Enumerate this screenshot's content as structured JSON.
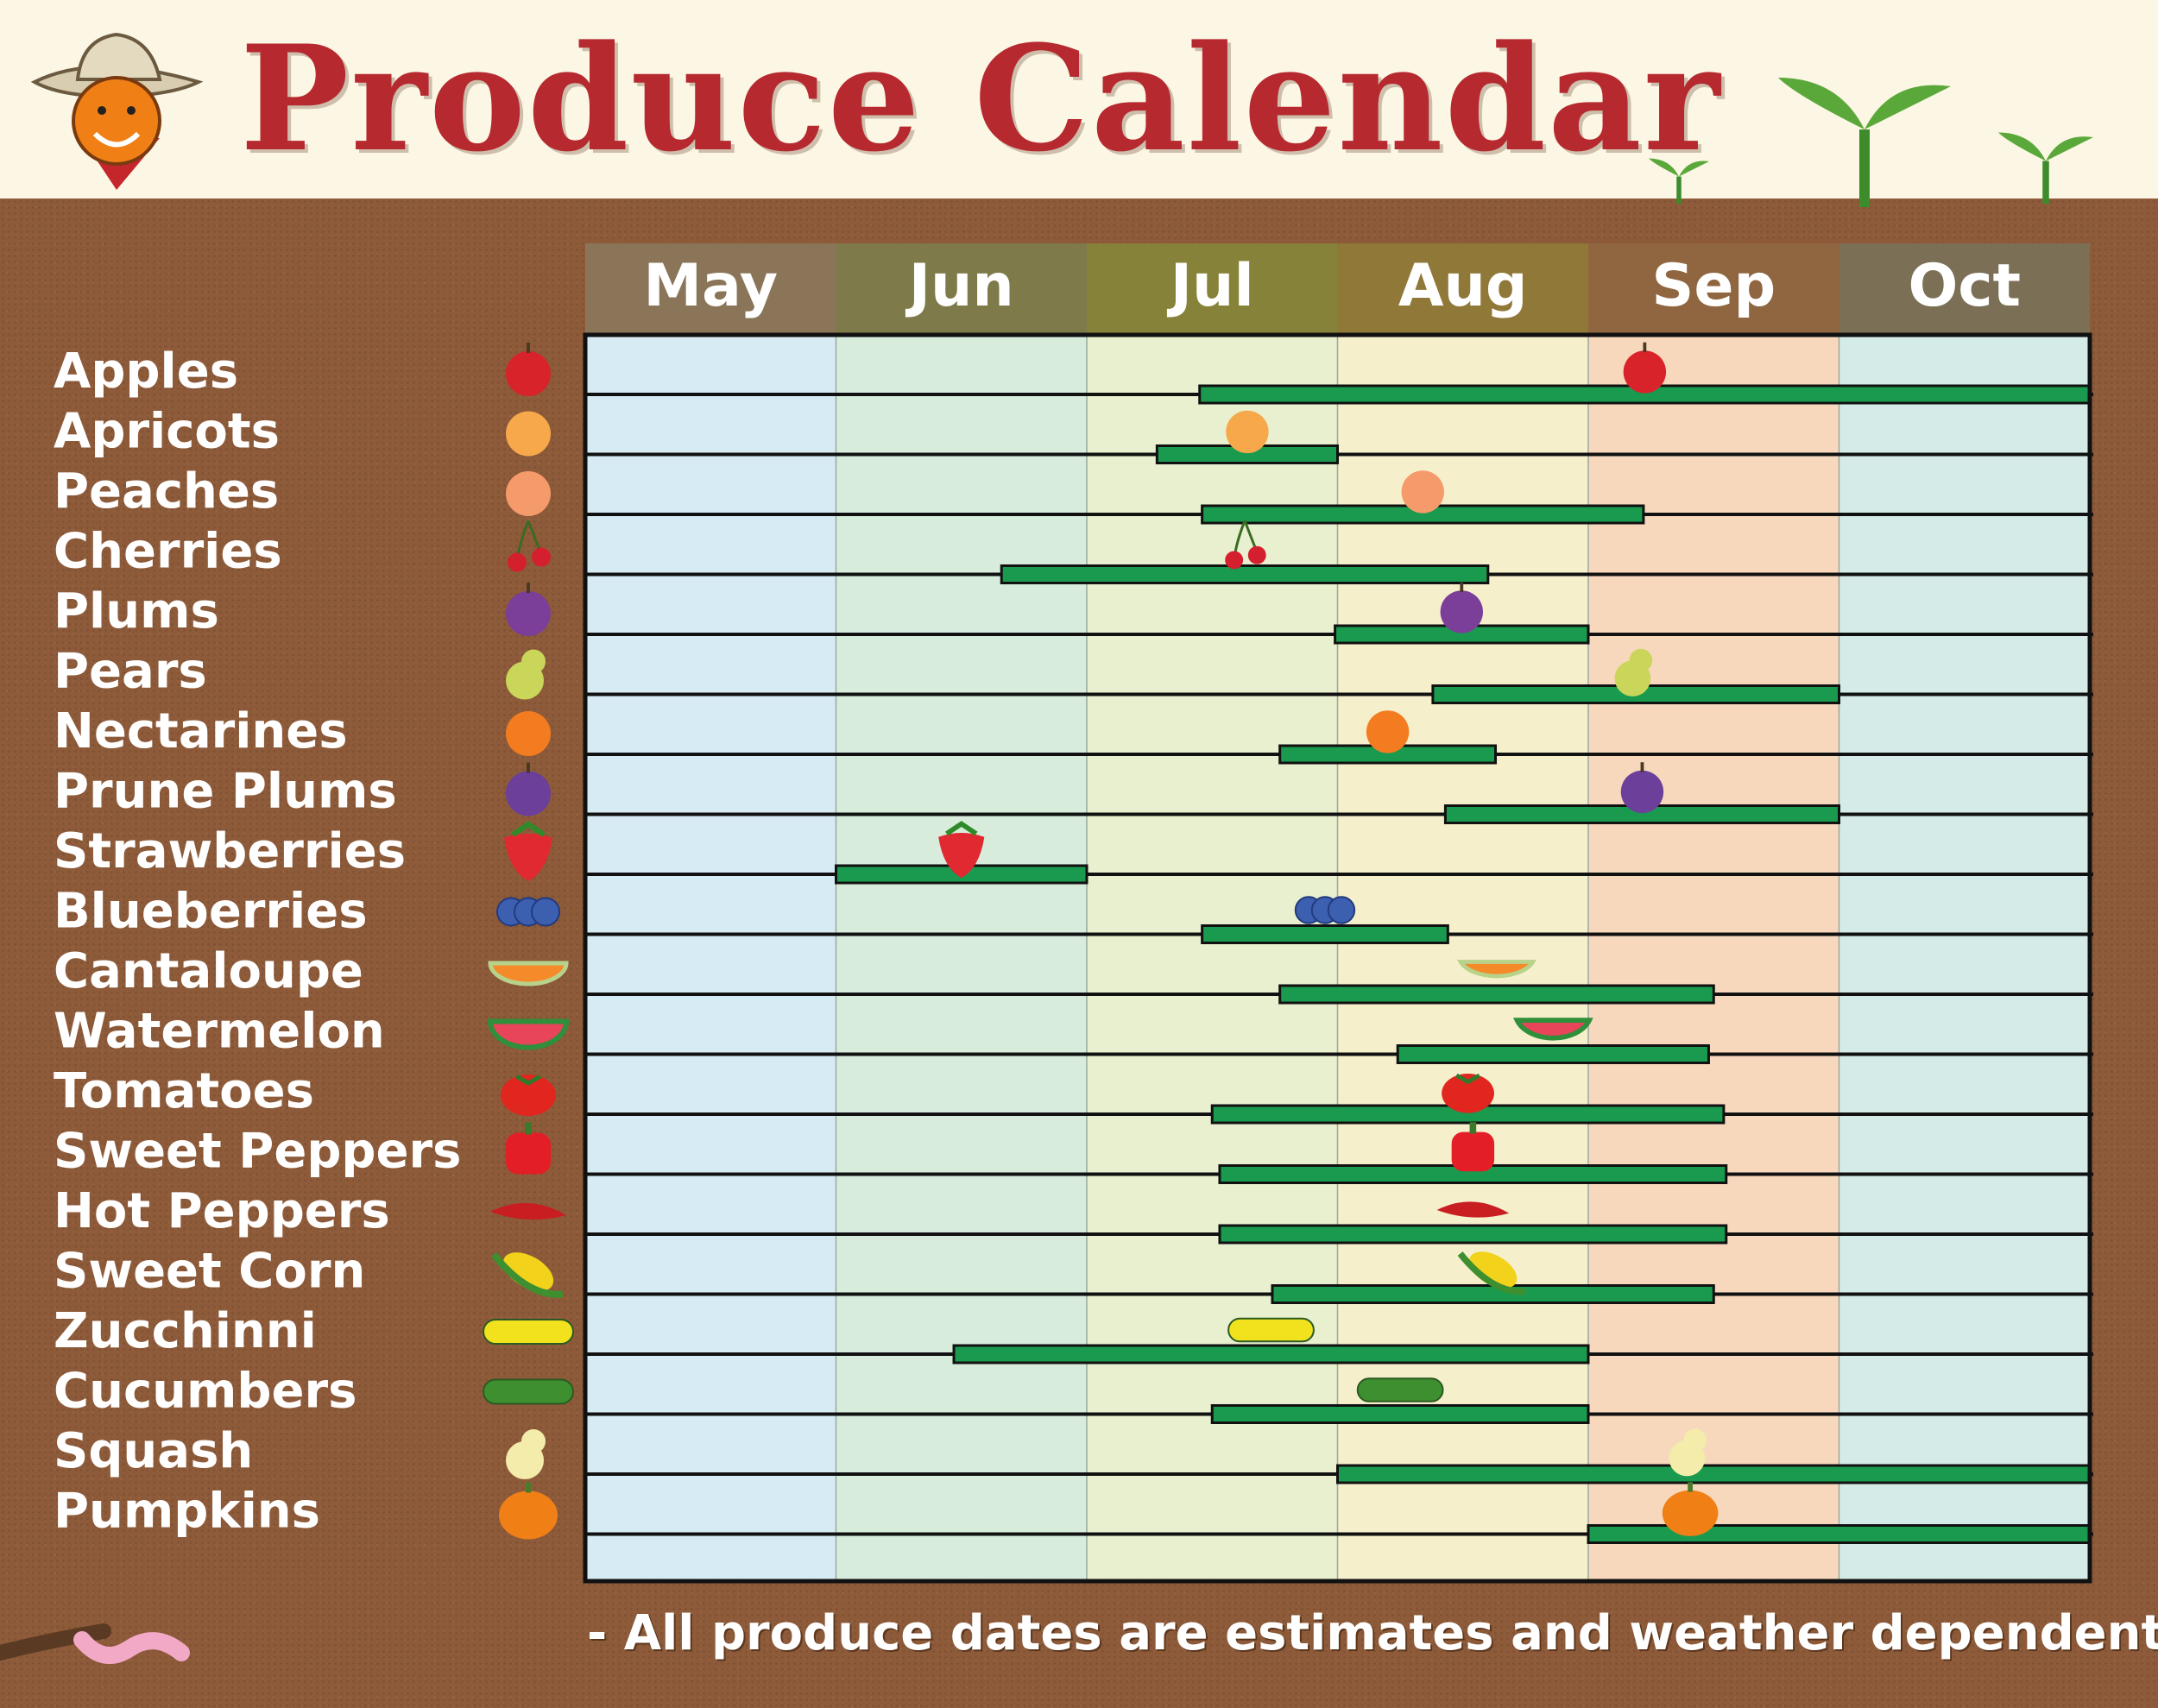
{
  "title": "Produce Calendar",
  "footnote": "- All produce dates are estimates and weather dependent -",
  "colors": {
    "title_red": "#b5292f",
    "bar_green": "#1a9a4f",
    "soil_brown": "#8d5b3a",
    "month_fills": [
      "#d6ebf3",
      "#d8ecdc",
      "#e8f0cf",
      "#f6efcb",
      "#f8d8bd",
      "#d4ebe8"
    ],
    "month_header_fills": [
      "#8a7558",
      "#7f7a4a",
      "#87823a",
      "#8f7838",
      "#8f6640",
      "#7b6f56"
    ]
  },
  "chart_data": {
    "type": "gantt",
    "title": "Produce Calendar",
    "months": [
      "May",
      "Jun",
      "Jul",
      "Aug",
      "Sep",
      "Oct"
    ],
    "x_unit": "month index (0 = start of May, 6 = end of Oct)",
    "grid": true,
    "series": [
      {
        "name": "Apples",
        "start": 2.45,
        "end": 6.0,
        "icon": "apple-icon",
        "color": "#d8232a"
      },
      {
        "name": "Apricots",
        "start": 2.28,
        "end": 3.0,
        "icon": "apricot-icon",
        "color": "#f7a84a"
      },
      {
        "name": "Peaches",
        "start": 2.46,
        "end": 4.22,
        "icon": "peach-icon",
        "color": "#f59a6a"
      },
      {
        "name": "Cherries",
        "start": 1.66,
        "end": 3.6,
        "icon": "cherry-icon",
        "color": "#d41f2e"
      },
      {
        "name": "Plums",
        "start": 2.99,
        "end": 4.0,
        "icon": "plum-icon",
        "color": "#7b3f9a"
      },
      {
        "name": "Pears",
        "start": 3.38,
        "end": 5.0,
        "icon": "pear-icon",
        "color": "#c9d65a"
      },
      {
        "name": "Nectarines",
        "start": 2.77,
        "end": 3.63,
        "icon": "nectarine-icon",
        "color": "#f47c20"
      },
      {
        "name": "Prune Plums",
        "start": 3.43,
        "end": 5.0,
        "icon": "prune-plum-icon",
        "color": "#6b3f9a"
      },
      {
        "name": "Strawberries",
        "start": 1.0,
        "end": 2.0,
        "icon": "strawberry-icon",
        "color": "#e02930"
      },
      {
        "name": "Blueberries",
        "start": 2.46,
        "end": 3.44,
        "icon": "blueberry-icon",
        "color": "#3d5fb0"
      },
      {
        "name": "Cantaloupe",
        "start": 2.77,
        "end": 4.5,
        "icon": "cantaloupe-icon",
        "color": "#f58a2a"
      },
      {
        "name": "Watermelon",
        "start": 3.24,
        "end": 4.48,
        "icon": "watermelon-icon",
        "color": "#e8445a"
      },
      {
        "name": "Tomatoes",
        "start": 2.5,
        "end": 4.54,
        "icon": "tomato-icon",
        "color": "#e0261f"
      },
      {
        "name": "Sweet Peppers",
        "start": 2.53,
        "end": 4.55,
        "icon": "sweet-pepper-icon",
        "color": "#e41e26"
      },
      {
        "name": "Hot Peppers",
        "start": 2.53,
        "end": 4.55,
        "icon": "hot-pepper-icon",
        "color": "#c81e22"
      },
      {
        "name": "Sweet Corn",
        "start": 2.74,
        "end": 4.5,
        "icon": "sweet-corn-icon",
        "color": "#f2d21b"
      },
      {
        "name": "Zucchinni",
        "start": 1.47,
        "end": 4.0,
        "icon": "zucchini-icon",
        "color": "#f1e21d"
      },
      {
        "name": "Cucumbers",
        "start": 2.5,
        "end": 4.0,
        "icon": "cucumber-icon",
        "color": "#3e8f2f"
      },
      {
        "name": "Squash",
        "start": 3.0,
        "end": 6.0,
        "icon": "squash-icon",
        "color": "#f4ecaa"
      },
      {
        "name": "Pumpkins",
        "start": 4.0,
        "end": 6.0,
        "icon": "pumpkin-icon",
        "color": "#f07f16"
      }
    ]
  }
}
